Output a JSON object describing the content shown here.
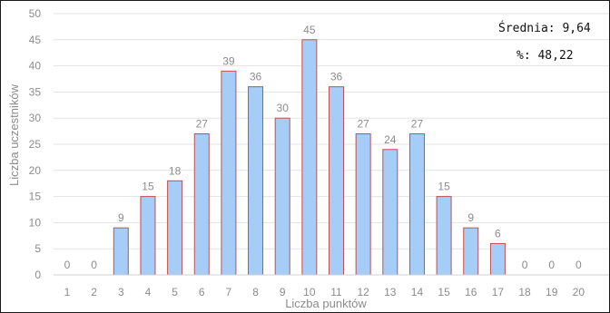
{
  "chart_data": {
    "type": "bar",
    "categories": [
      "1",
      "2",
      "3",
      "4",
      "5",
      "6",
      "7",
      "8",
      "9",
      "10",
      "11",
      "12",
      "13",
      "14",
      "15",
      "16",
      "17",
      "18",
      "19",
      "20"
    ],
    "values": [
      0,
      0,
      9,
      15,
      18,
      27,
      39,
      36,
      30,
      45,
      36,
      27,
      24,
      27,
      15,
      9,
      6,
      0,
      0,
      0
    ],
    "xlabel": "Liczba punktów",
    "ylabel": "Liczba uczestników",
    "ylim": [
      0,
      50
    ],
    "yticks": [
      0,
      5,
      10,
      15,
      20,
      25,
      30,
      35,
      40,
      45,
      50
    ],
    "grid": true,
    "data_labels": true,
    "colors": {
      "bar_fill": "#a6cdf7",
      "bar_stroke": "#c0504d",
      "grid": "#e3e3e3",
      "text": "#8c8c8c"
    },
    "annotations": {
      "mean": "Średnia: 9,64",
      "percent": "%: 48,22"
    }
  }
}
